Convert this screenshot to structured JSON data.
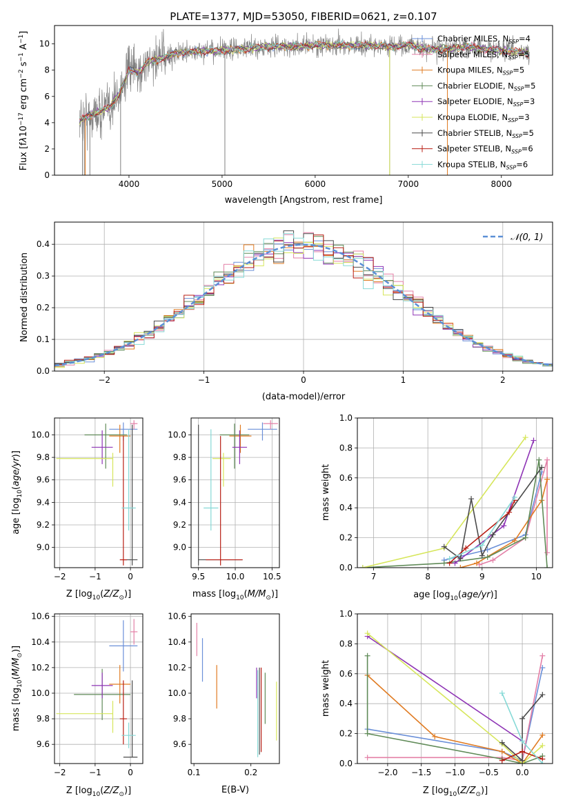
{
  "figure_title": "PLATE=1377, MJD=53050, FIBERID=0621, z=0.107",
  "colors": {
    "Chabrier MILES": "#6a8fd8",
    "Salpeter MILES": "#e37fa6",
    "Kroupa MILES": "#e07b22",
    "Chabrier ELODIE": "#5f8a57",
    "Salpeter ELODIE": "#8e34b5",
    "Kroupa ELODIE": "#d6e65a",
    "Chabrier STELIB": "#4a4a4a",
    "Salpeter STELIB": "#b81d13",
    "Kroupa STELIB": "#85d9d6",
    "data": "#808080",
    "normal": "#5b8fd6"
  },
  "chart_data": [
    {
      "id": "spectrum",
      "type": "line",
      "title": "PLATE=1377, MJD=53050, FIBERID=0621, z=0.107",
      "xlabel": "wavelength [Angstrom, rest frame]",
      "ylabel": "Flux [f_λ10^-17 erg cm^-2 s^-1 A^-1]",
      "xlim": [
        3200,
        8550
      ],
      "ylim": [
        0,
        11.4
      ],
      "xticks": [
        4000,
        5000,
        6000,
        7000,
        8000
      ],
      "yticks": [
        0,
        2,
        4,
        6,
        8,
        10
      ],
      "grid": false,
      "legend_position": "right",
      "legend": [
        {
          "name": "Chabrier MILES",
          "n_ssp": "4"
        },
        {
          "name": "Salpeter MILES",
          "n_ssp": "5"
        },
        {
          "name": "Kroupa MILES",
          "n_ssp": "5"
        },
        {
          "name": "Chabrier ELODIE",
          "n_ssp": "5"
        },
        {
          "name": "Salpeter ELODIE",
          "n_ssp": "3"
        },
        {
          "name": "Kroupa ELODIE",
          "n_ssp": "3"
        },
        {
          "name": "Chabrier STELIB",
          "n_ssp": "5"
        },
        {
          "name": "Salpeter STELIB",
          "n_ssp": "6"
        },
        {
          "name": "Kroupa STELIB",
          "n_ssp": "6"
        }
      ],
      "model_points": [
        [
          3470,
          4.2
        ],
        [
          3600,
          4.6
        ],
        [
          3700,
          4.9
        ],
        [
          3800,
          5.2
        ],
        [
          3900,
          6.3
        ],
        [
          4000,
          8.0
        ],
        [
          4100,
          7.8
        ],
        [
          4200,
          8.6
        ],
        [
          4300,
          8.8
        ],
        [
          4400,
          9.0
        ],
        [
          4500,
          9.3
        ],
        [
          4700,
          9.4
        ],
        [
          5000,
          9.5
        ],
        [
          5200,
          9.6
        ],
        [
          5500,
          9.8
        ],
        [
          5800,
          9.8
        ],
        [
          6000,
          9.9
        ],
        [
          6300,
          9.9
        ],
        [
          6600,
          9.9
        ],
        [
          6800,
          9.8
        ],
        [
          7000,
          9.9
        ],
        [
          7200,
          9.6
        ],
        [
          7400,
          9.6
        ],
        [
          7600,
          9.8
        ],
        [
          8000,
          9.5
        ],
        [
          8300,
          9.3
        ]
      ],
      "spikes": [
        3500,
        3520,
        3580,
        3910,
        5030,
        6800,
        7420
      ]
    },
    {
      "id": "residuals",
      "type": "histogram",
      "xlabel": "(data-model)/error",
      "ylabel": "Normed distribution",
      "xlim": [
        -2.5,
        2.5
      ],
      "ylim": [
        0,
        0.47
      ],
      "xticks": [
        -2,
        -1,
        0,
        1,
        2
      ],
      "yticks": [
        0.0,
        0.1,
        0.2,
        0.3,
        0.4
      ],
      "grid": true,
      "legend_position": "top-right",
      "normal_label": "𝒩(0, 1)",
      "bin_width": 0.1
    },
    {
      "id": "age_vs_Z",
      "type": "errorbar",
      "xlabel": "Z [log10(Z/Z☉)]",
      "ylabel": "age [log10(age/yr)]",
      "xlim": [
        -2.15,
        0.35
      ],
      "ylim": [
        8.82,
        10.15
      ],
      "xticks": [
        -2,
        -1,
        0
      ],
      "yticks": [
        9.0,
        9.2,
        9.4,
        9.6,
        9.8,
        10.0
      ],
      "grid": true,
      "points": [
        {
          "series": "Chabrier MILES",
          "x": -0.2,
          "xerr": [
            0.4,
            0.4
          ],
          "y": 10.05,
          "yerr": [
            0.1,
            0.06
          ]
        },
        {
          "series": "Salpeter MILES",
          "x": 0.1,
          "xerr": [
            0.1,
            0.1
          ],
          "y": 10.1,
          "yerr": [
            0.05,
            0.03
          ]
        },
        {
          "series": "Kroupa MILES",
          "x": -0.3,
          "xerr": [
            0.3,
            0.3
          ],
          "y": 9.99,
          "yerr": [
            0.15,
            0.1
          ]
        },
        {
          "series": "Chabrier ELODIE",
          "x": -0.7,
          "xerr": [
            0.6,
            0.6
          ],
          "y": 10.0,
          "yerr": [
            0.3,
            0.1
          ]
        },
        {
          "series": "Salpeter ELODIE",
          "x": -0.8,
          "xerr": [
            0.3,
            0.3
          ],
          "y": 9.89,
          "yerr": [
            0.15,
            0.15
          ]
        },
        {
          "series": "Kroupa ELODIE",
          "x": -0.5,
          "xerr": [
            1.6,
            0.0
          ],
          "y": 9.79,
          "yerr": [
            0.25,
            0.05
          ]
        },
        {
          "series": "Chabrier STELIB",
          "x": 0.05,
          "xerr": [
            0.25,
            0.15
          ],
          "y": 8.89,
          "yerr": [
            0.05,
            1.2
          ]
        },
        {
          "series": "Salpeter STELIB",
          "x": -0.2,
          "xerr": [
            0.1,
            0.1
          ],
          "y": 8.89,
          "yerr": [
            0.05,
            1.1
          ]
        },
        {
          "series": "Kroupa STELIB",
          "x": -0.05,
          "xerr": [
            0.2,
            0.2
          ],
          "y": 9.35,
          "yerr": [
            0.2,
            0.7
          ]
        }
      ]
    },
    {
      "id": "age_vs_mass",
      "type": "errorbar",
      "xlabel": "mass [log10(M/M☉)]",
      "ylabel": "",
      "xlim": [
        9.4,
        10.6
      ],
      "ylim": [
        8.82,
        10.15
      ],
      "xticks": [
        9.5,
        10.0,
        10.5
      ],
      "yticks": [
        9.0,
        9.2,
        9.4,
        9.6,
        9.8,
        10.0
      ],
      "grid": true,
      "points": [
        {
          "series": "Chabrier MILES",
          "x": 10.37,
          "xerr": [
            0.2,
            0.2
          ],
          "y": 10.05,
          "yerr": [
            0.1,
            0.06
          ]
        },
        {
          "series": "Salpeter MILES",
          "x": 10.48,
          "xerr": [
            0.1,
            0.1
          ],
          "y": 10.1,
          "yerr": [
            0.05,
            0.03
          ]
        },
        {
          "series": "Kroupa MILES",
          "x": 10.07,
          "xerr": [
            0.15,
            0.15
          ],
          "y": 9.99,
          "yerr": [
            0.15,
            0.1
          ]
        },
        {
          "series": "Chabrier ELODIE",
          "x": 9.99,
          "xerr": [
            0.2,
            0.2
          ],
          "y": 10.0,
          "yerr": [
            0.3,
            0.1
          ]
        },
        {
          "series": "Salpeter ELODIE",
          "x": 10.06,
          "xerr": [
            0.1,
            0.1
          ],
          "y": 9.89,
          "yerr": [
            0.15,
            0.15
          ]
        },
        {
          "series": "Kroupa ELODIE",
          "x": 9.84,
          "xerr": [
            0.15,
            0.1
          ],
          "y": 9.79,
          "yerr": [
            0.25,
            0.05
          ]
        },
        {
          "series": "Chabrier STELIB",
          "x": 9.5,
          "xerr": [
            0.0,
            0.6
          ],
          "y": 8.89,
          "yerr": [
            0.05,
            1.2
          ]
        },
        {
          "series": "Salpeter STELIB",
          "x": 9.8,
          "xerr": [
            0.2,
            0.3
          ],
          "y": 8.89,
          "yerr": [
            0.05,
            1.1
          ]
        },
        {
          "series": "Kroupa STELIB",
          "x": 9.67,
          "xerr": [
            0.1,
            0.1
          ],
          "y": 9.35,
          "yerr": [
            0.2,
            0.7
          ]
        }
      ]
    },
    {
      "id": "weight_vs_age",
      "type": "line",
      "xlabel": "age [log10(age/yr)]",
      "ylabel": "mass weight",
      "xlim": [
        6.7,
        10.3
      ],
      "ylim": [
        0,
        1.0
      ],
      "xticks": [
        7,
        8,
        9,
        10
      ],
      "yticks": [
        0.0,
        0.2,
        0.4,
        0.6,
        0.8,
        1.0
      ],
      "grid": true,
      "series": [
        {
          "name": "Chabrier MILES",
          "x": [
            8.3,
            9.1,
            9.8,
            10.1
          ],
          "y": [
            0.05,
            0.12,
            0.22,
            0.64
          ]
        },
        {
          "name": "Salpeter MILES",
          "x": [
            8.95,
            9.2,
            9.8,
            10.2,
            10.2
          ],
          "y": [
            0.02,
            0.05,
            0.2,
            0.72,
            0.1
          ]
        },
        {
          "name": "Kroupa MILES",
          "x": [
            8.6,
            8.9,
            9.6,
            10.1,
            10.2
          ],
          "y": [
            0.0,
            0.03,
            0.18,
            0.45,
            0.59
          ]
        },
        {
          "name": "Chabrier ELODIE",
          "x": [
            6.8,
            8.3,
            9.1,
            9.8,
            10.05,
            10.2
          ],
          "y": [
            0.0,
            0.03,
            0.07,
            0.2,
            0.72,
            0.0
          ]
        },
        {
          "name": "Salpeter ELODIE",
          "x": [
            8.5,
            9.4,
            9.95
          ],
          "y": [
            0.03,
            0.28,
            0.85
          ]
        },
        {
          "name": "Kroupa ELODIE",
          "x": [
            6.8,
            8.3,
            9.8
          ],
          "y": [
            0.0,
            0.13,
            0.87
          ]
        },
        {
          "name": "Chabrier STELIB",
          "x": [
            8.3,
            8.6,
            8.8,
            9.0,
            9.2,
            10.1
          ],
          "y": [
            0.14,
            0.06,
            0.46,
            0.08,
            0.22,
            0.67
          ]
        },
        {
          "name": "Salpeter STELIB",
          "x": [
            8.4,
            8.7,
            9.5,
            9.6
          ],
          "y": [
            0.03,
            0.13,
            0.37,
            0.45
          ]
        },
        {
          "name": "Kroupa STELIB",
          "x": [
            8.4,
            9.0,
            9.6
          ],
          "y": [
            0.06,
            0.15,
            0.47
          ]
        }
      ]
    },
    {
      "id": "mass_vs_Z",
      "type": "errorbar",
      "xlabel": "Z [log10(Z/Z☉)]",
      "ylabel": "mass [log10(M/M☉)]",
      "xlim": [
        -2.15,
        0.35
      ],
      "ylim": [
        9.45,
        10.62
      ],
      "xticks": [
        -2,
        -1,
        0
      ],
      "yticks": [
        9.6,
        9.8,
        10.0,
        10.2,
        10.4,
        10.6
      ],
      "grid": true,
      "points": [
        {
          "series": "Chabrier MILES",
          "x": -0.2,
          "xerr": [
            0.4,
            0.4
          ],
          "y": 10.37,
          "yerr": [
            0.2,
            0.2
          ]
        },
        {
          "series": "Salpeter MILES",
          "x": 0.1,
          "xerr": [
            0.1,
            0.1
          ],
          "y": 10.48,
          "yerr": [
            0.1,
            0.1
          ]
        },
        {
          "series": "Kroupa MILES",
          "x": -0.3,
          "xerr": [
            0.3,
            0.3
          ],
          "y": 10.07,
          "yerr": [
            0.15,
            0.15
          ]
        },
        {
          "series": "Chabrier ELODIE",
          "x": -0.8,
          "xerr": [
            0.8,
            0.8
          ],
          "y": 9.99,
          "yerr": [
            0.2,
            0.2
          ]
        },
        {
          "series": "Salpeter ELODIE",
          "x": -0.8,
          "xerr": [
            0.3,
            0.3
          ],
          "y": 10.06,
          "yerr": [
            0.1,
            0.1
          ]
        },
        {
          "series": "Kroupa ELODIE",
          "x": -0.5,
          "xerr": [
            1.6,
            0.0
          ],
          "y": 9.84,
          "yerr": [
            0.15,
            0.1
          ]
        },
        {
          "series": "Chabrier STELIB",
          "x": 0.05,
          "xerr": [
            0.25,
            0.15
          ],
          "y": 9.5,
          "yerr": [
            0.0,
            0.6
          ]
        },
        {
          "series": "Salpeter STELIB",
          "x": -0.2,
          "xerr": [
            0.1,
            0.1
          ],
          "y": 9.8,
          "yerr": [
            0.2,
            0.3
          ]
        },
        {
          "series": "Kroupa STELIB",
          "x": -0.05,
          "xerr": [
            0.2,
            0.2
          ],
          "y": 9.67,
          "yerr": [
            0.1,
            0.1
          ]
        }
      ]
    },
    {
      "id": "mass_vs_ebv",
      "type": "errorbar",
      "xlabel": "E(B-V)",
      "ylabel": "",
      "xlim": [
        0.095,
        0.25
      ],
      "ylim": [
        9.45,
        10.62
      ],
      "xticks": [
        0.1,
        0.2
      ],
      "yticks": [
        9.6,
        9.8,
        10.0,
        10.2,
        10.4,
        10.6
      ],
      "grid": false,
      "points": [
        {
          "series": "Chabrier MILES",
          "x": 0.115,
          "y": 10.26,
          "yerr": [
            0.17,
            0.17
          ]
        },
        {
          "series": "Salpeter MILES",
          "x": 0.105,
          "y": 10.42,
          "yerr": [
            0.13,
            0.13
          ]
        },
        {
          "series": "Kroupa MILES",
          "x": 0.14,
          "y": 10.05,
          "yerr": [
            0.17,
            0.17
          ]
        },
        {
          "series": "Chabrier ELODIE",
          "x": 0.225,
          "y": 9.96,
          "yerr": [
            0.2,
            0.2
          ]
        },
        {
          "series": "Salpeter ELODIE",
          "x": 0.21,
          "y": 10.06,
          "yerr": [
            0.1,
            0.14
          ]
        },
        {
          "series": "Kroupa ELODIE",
          "x": 0.245,
          "y": 9.86,
          "yerr": [
            0.23,
            0.23
          ]
        },
        {
          "series": "Chabrier STELIB",
          "x": 0.215,
          "y": 9.86,
          "yerr": [
            0.34,
            0.34
          ]
        },
        {
          "series": "Salpeter STELIB",
          "x": 0.218,
          "y": 9.87,
          "yerr": [
            0.33,
            0.33
          ]
        },
        {
          "series": "Kroupa STELIB",
          "x": 0.212,
          "y": 9.84,
          "yerr": [
            0.34,
            0.34
          ]
        }
      ]
    },
    {
      "id": "weight_vs_Z",
      "type": "line",
      "xlabel": "Z [log10(Z/Z☉)]",
      "ylabel": "mass weight",
      "xlim": [
        -2.45,
        0.45
      ],
      "ylim": [
        0,
        1.0
      ],
      "xticks": [
        -2.0,
        -1.5,
        -1.0,
        -0.5,
        0.0
      ],
      "yticks": [
        0.0,
        0.2,
        0.4,
        0.6,
        0.8,
        1.0
      ],
      "grid": true,
      "series": [
        {
          "name": "Chabrier MILES",
          "x": [
            -2.3,
            -0.3,
            0.0,
            0.3
          ],
          "y": [
            0.23,
            0.08,
            0.02,
            0.64
          ]
        },
        {
          "name": "Salpeter MILES",
          "x": [
            -2.3,
            -0.3,
            0.0,
            0.3
          ],
          "y": [
            0.04,
            0.04,
            0.02,
            0.72
          ]
        },
        {
          "name": "Kroupa MILES",
          "x": [
            -2.3,
            -1.3,
            -0.3,
            0.0,
            0.3
          ],
          "y": [
            0.59,
            0.18,
            0.08,
            0.0,
            0.19
          ]
        },
        {
          "name": "Chabrier ELODIE",
          "x": [
            -2.3,
            -2.3,
            -0.3,
            0.0,
            0.3
          ],
          "y": [
            0.72,
            0.2,
            0.03,
            0.0,
            0.05
          ]
        },
        {
          "name": "Salpeter ELODIE",
          "x": [
            -2.3,
            0.0
          ],
          "y": [
            0.85,
            0.15
          ]
        },
        {
          "name": "Kroupa ELODIE",
          "x": [
            -2.3,
            -0.3,
            0.0,
            0.3
          ],
          "y": [
            0.87,
            0.13,
            0.0,
            0.12
          ]
        },
        {
          "name": "Chabrier STELIB",
          "x": [
            -0.3,
            0.0,
            0.0,
            0.3
          ],
          "y": [
            0.14,
            0.02,
            0.3,
            0.46
          ]
        },
        {
          "name": "Salpeter STELIB",
          "x": [
            -0.3,
            0.0,
            0.3
          ],
          "y": [
            0.02,
            0.08,
            0.03
          ]
        },
        {
          "name": "Kroupa STELIB",
          "x": [
            -0.3,
            0.0,
            0.3
          ],
          "y": [
            0.47,
            0.15,
            0.0
          ]
        }
      ]
    }
  ]
}
